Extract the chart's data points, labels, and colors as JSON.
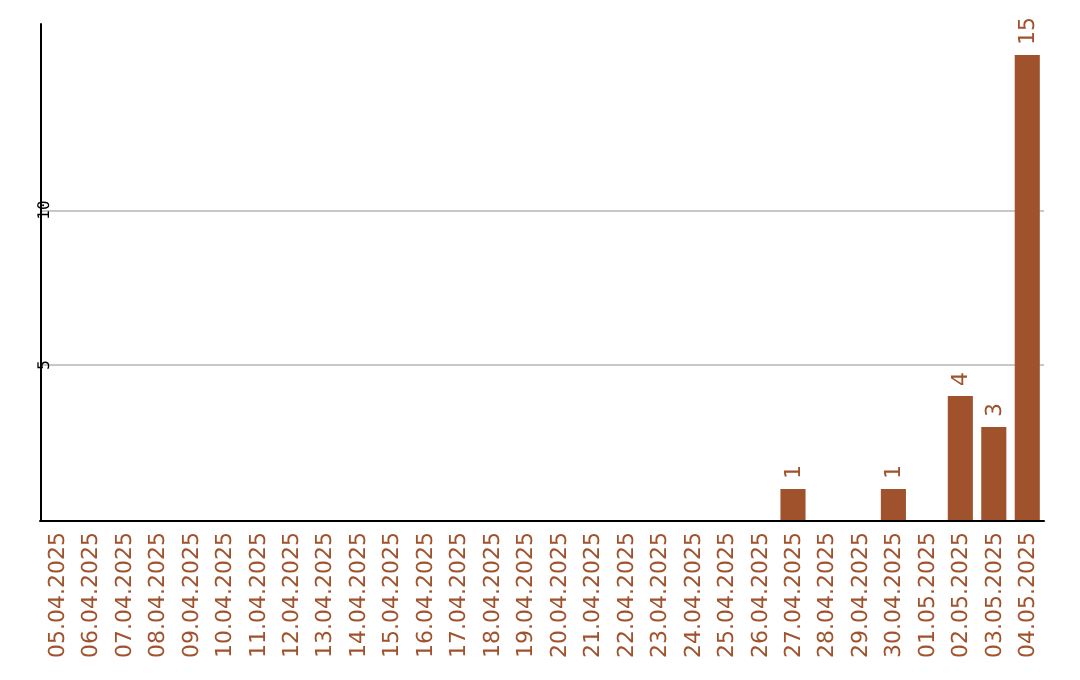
{
  "chart_data": {
    "type": "bar",
    "categories": [
      "05.04.2025",
      "06.04.2025",
      "07.04.2025",
      "08.04.2025",
      "09.04.2025",
      "10.04.2025",
      "11.04.2025",
      "12.04.2025",
      "13.04.2025",
      "14.04.2025",
      "15.04.2025",
      "16.04.2025",
      "17.04.2025",
      "18.04.2025",
      "19.04.2025",
      "20.04.2025",
      "21.04.2025",
      "22.04.2025",
      "23.04.2025",
      "24.04.2025",
      "25.04.2025",
      "26.04.2025",
      "27.04.2025",
      "28.04.2025",
      "29.04.2025",
      "30.04.2025",
      "01.05.2025",
      "02.05.2025",
      "03.05.2025",
      "04.05.2025"
    ],
    "values": [
      0,
      0,
      0,
      0,
      0,
      0,
      0,
      0,
      0,
      0,
      0,
      0,
      0,
      0,
      0,
      0,
      0,
      0,
      0,
      0,
      0,
      0,
      1,
      0,
      0,
      1,
      0,
      4,
      3,
      15
    ],
    "value_labels": [
      null,
      null,
      null,
      null,
      null,
      null,
      null,
      null,
      null,
      null,
      null,
      null,
      null,
      null,
      null,
      null,
      null,
      null,
      null,
      null,
      null,
      null,
      "1",
      null,
      null,
      "1",
      null,
      "4",
      "3",
      "15"
    ],
    "color": "#a0522d",
    "ylim": [
      0,
      16
    ],
    "yticks": [
      5,
      10
    ],
    "grid": "y"
  }
}
